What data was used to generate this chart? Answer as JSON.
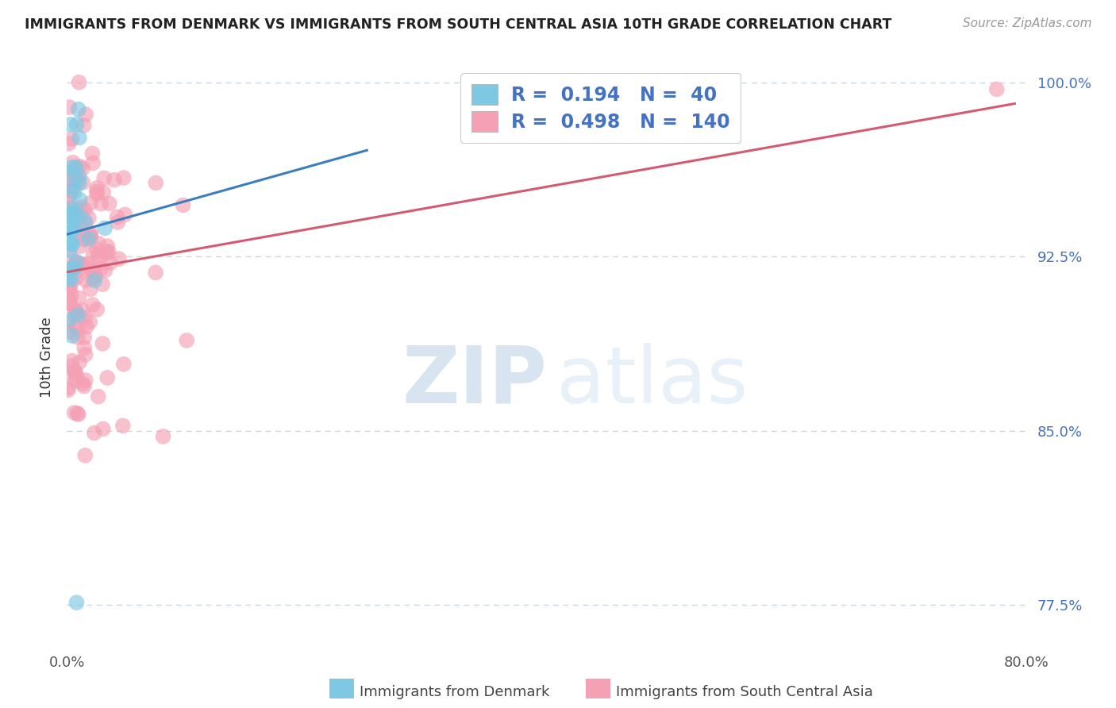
{
  "title": "IMMIGRANTS FROM DENMARK VS IMMIGRANTS FROM SOUTH CENTRAL ASIA 10TH GRADE CORRELATION CHART",
  "source": "Source: ZipAtlas.com",
  "xlabel_denmark": "Immigrants from Denmark",
  "xlabel_sca": "Immigrants from South Central Asia",
  "ylabel": "10th Grade",
  "xlim": [
    0.0,
    0.8
  ],
  "ylim": [
    0.755,
    1.008
  ],
  "yticks": [
    0.775,
    0.85,
    0.925,
    1.0
  ],
  "ytick_labels": [
    "77.5%",
    "85.0%",
    "92.5%",
    "100.0%"
  ],
  "r_denmark": 0.194,
  "n_denmark": 40,
  "r_sca": 0.498,
  "n_sca": 140,
  "denmark_color": "#7ec8e3",
  "sca_color": "#f4a0b5",
  "denmark_line_color": "#3a7ebf",
  "sca_line_color": "#d45a72",
  "background_color": "#ffffff",
  "watermark_zip": "ZIP",
  "watermark_atlas": "atlas",
  "watermark_color": "#d8e4ef",
  "grid_color": "#c8d8e8",
  "title_color": "#222222",
  "axis_label_color": "#333333",
  "tick_label_color": "#555555",
  "right_tick_color": "#4472c4",
  "legend_text_color": "#4472c4",
  "legend_edge_color": "#cccccc"
}
